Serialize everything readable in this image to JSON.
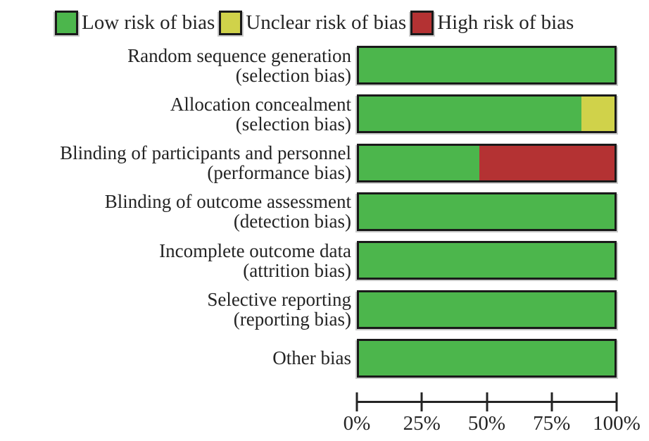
{
  "legend": {
    "items": [
      {
        "label": "Low risk of bias",
        "color": "#4CB64C"
      },
      {
        "label": "Unclear risk of bias",
        "color": "#D0D24A"
      },
      {
        "label": "High risk of bias",
        "color": "#B43233"
      }
    ]
  },
  "chart_data": {
    "type": "bar",
    "orientation": "horizontal-stacked",
    "title": "",
    "xlabel": "",
    "ylabel": "",
    "categories": [
      [
        "Random sequence generation",
        "(selection bias)"
      ],
      [
        "Allocation concealment",
        "(selection bias)"
      ],
      [
        "Blinding of participants and personnel",
        "(performance bias)"
      ],
      [
        "Blinding of outcome assessment",
        "(detection bias)"
      ],
      [
        "Incomplete outcome data",
        "(attrition bias)"
      ],
      [
        "Selective reporting",
        "(reporting bias)"
      ],
      [
        "Other bias"
      ]
    ],
    "series": [
      {
        "name": "Low risk of bias",
        "color": "#4CB64C",
        "values": [
          100,
          87,
          47,
          100,
          100,
          100,
          100
        ]
      },
      {
        "name": "Unclear risk of bias",
        "color": "#D0D24A",
        "values": [
          0,
          13,
          0,
          0,
          0,
          0,
          0
        ]
      },
      {
        "name": "High risk of bias",
        "color": "#B43233",
        "values": [
          0,
          0,
          53,
          0,
          0,
          0,
          0
        ]
      }
    ],
    "x_ticks": [
      "0%",
      "25%",
      "50%",
      "75%",
      "100%"
    ],
    "x_tick_positions": [
      0,
      25,
      50,
      75,
      100
    ],
    "xlim": [
      0,
      100
    ],
    "grid": false,
    "legend_position": "top"
  },
  "colors": {
    "background": "#ffffff",
    "text": "#242424",
    "bar_border": "#1a1a1a",
    "axis": "#242424"
  }
}
